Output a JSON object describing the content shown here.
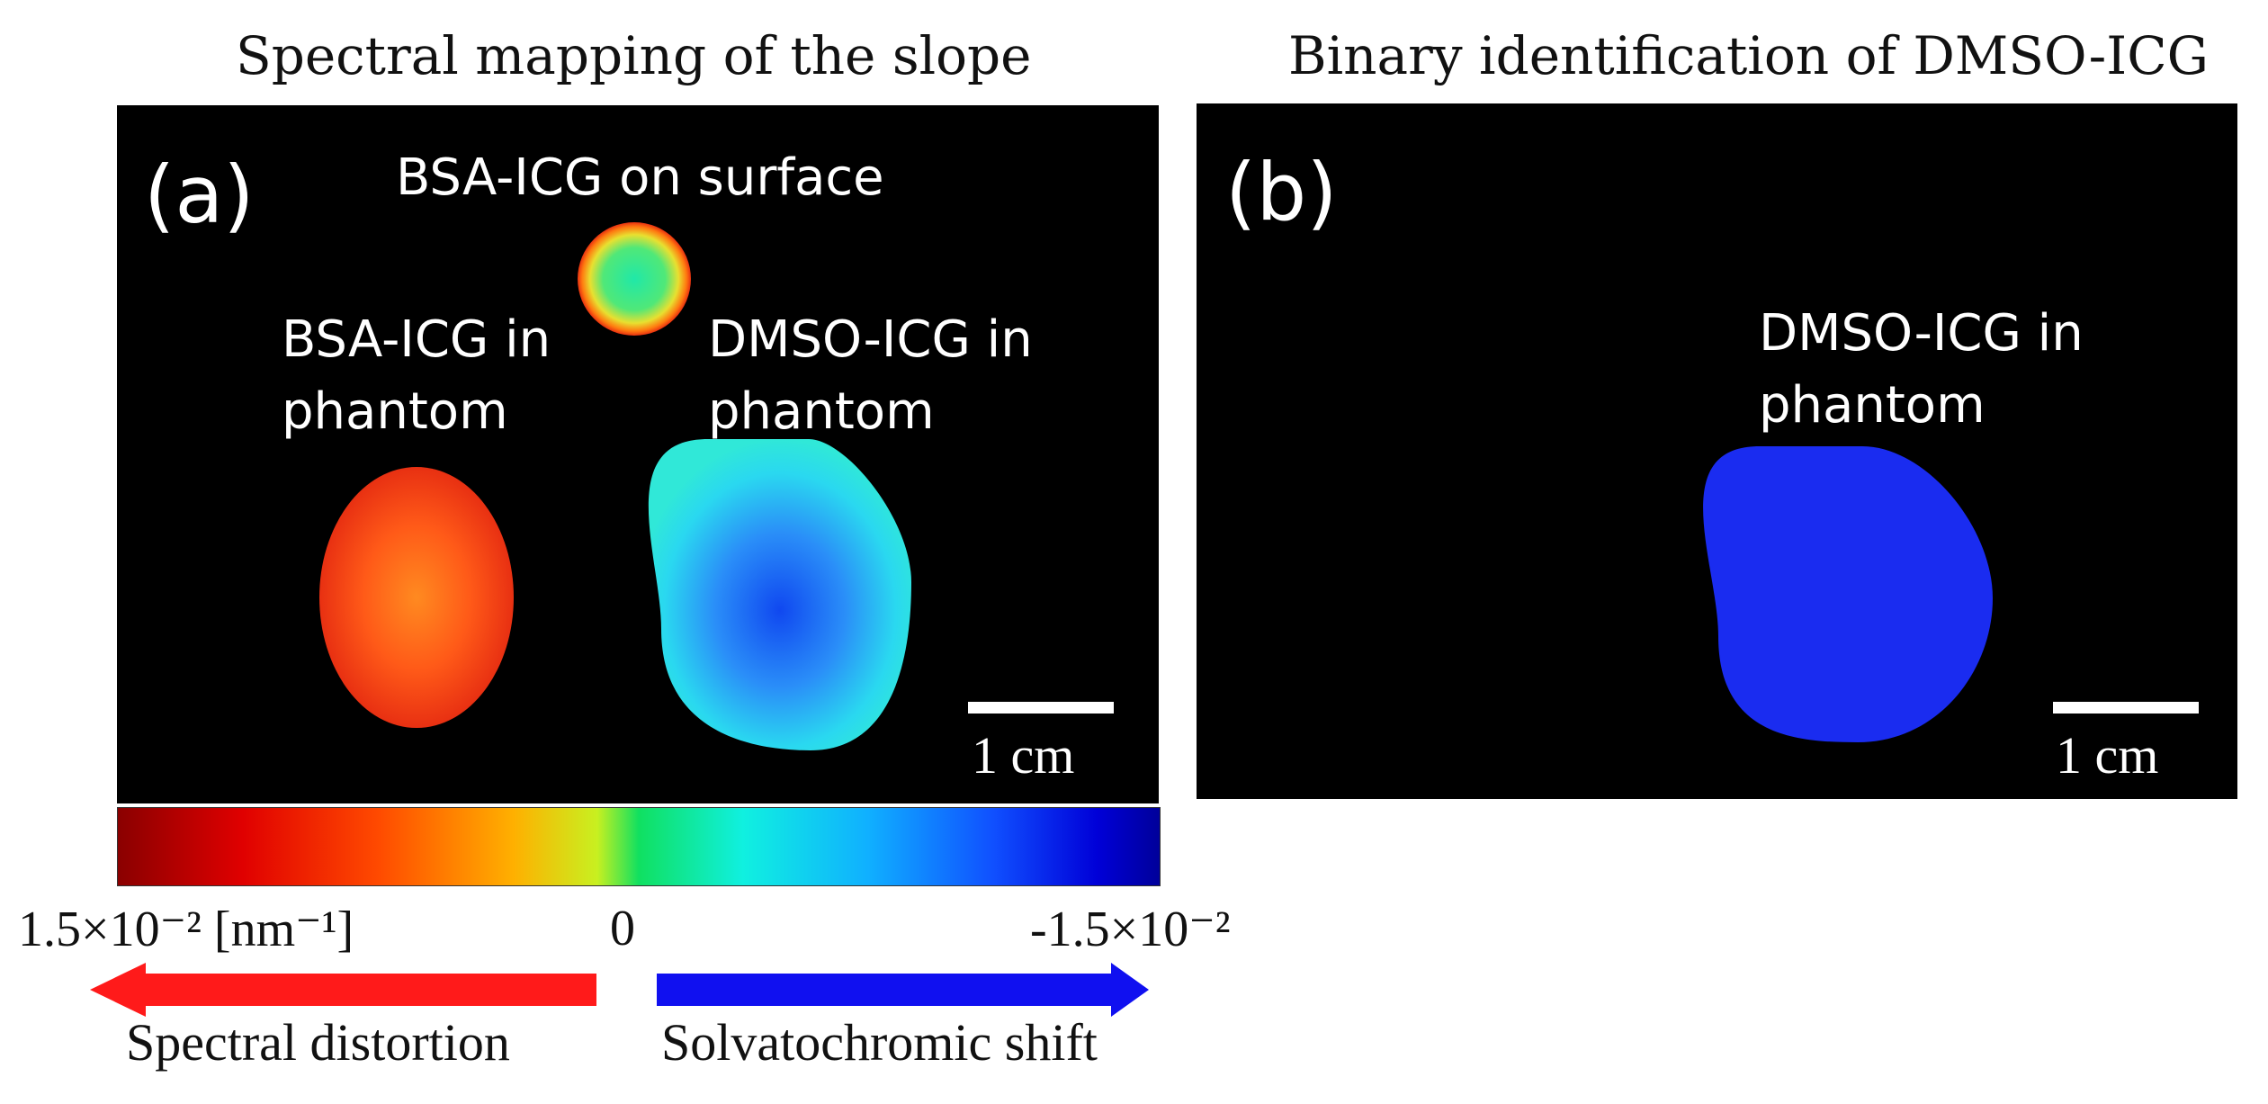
{
  "panel_a": {
    "title": "Spectral mapping of the slope",
    "letter": "(a)",
    "labels": {
      "surface": "BSA-ICG on surface",
      "bsa_line1": "BSA-ICG in",
      "bsa_line2": "phantom",
      "dmso_line1": "DMSO-ICG in",
      "dmso_line2": "phantom"
    },
    "scale": "1 cm"
  },
  "panel_b": {
    "title": "Binary identification of DMSO-ICG",
    "letter": "(b)",
    "labels": {
      "dmso_line1": "DMSO-ICG in",
      "dmso_line2": "phantom"
    },
    "scale": "1 cm"
  },
  "colorbar": {
    "left_label": "1.5×10⁻² [nm⁻¹]",
    "center_label": "0",
    "right_label": "-1.5×10⁻²",
    "min": -0.015,
    "max": 0.015,
    "unit": "nm-1"
  },
  "arrows": {
    "left_label": "Spectral distortion",
    "left_color": "#ff1a1a",
    "right_label": "Solvatochromic shift",
    "right_color": "#1010f0"
  }
}
